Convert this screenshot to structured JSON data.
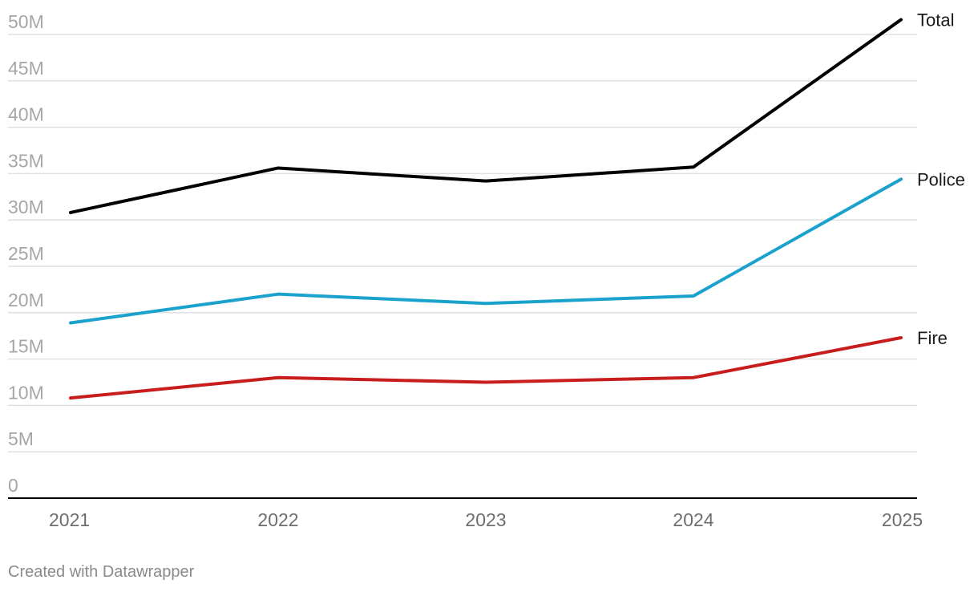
{
  "chart_data": {
    "type": "line",
    "title": "",
    "xlabel": "",
    "ylabel": "",
    "x": [
      "2021",
      "2022",
      "2023",
      "2024",
      "2025"
    ],
    "ylim": [
      0,
      50000000
    ],
    "y_ticks": [
      0,
      5000000,
      10000000,
      15000000,
      20000000,
      25000000,
      30000000,
      35000000,
      40000000,
      45000000,
      50000000
    ],
    "y_tick_labels": [
      "0",
      "5M",
      "10M",
      "15M",
      "20M",
      "25M",
      "30M",
      "35M",
      "40M",
      "45M",
      "50M"
    ],
    "grid": true,
    "legend": "inline labels at line ends",
    "series": [
      {
        "name": "Total",
        "color": "#000000",
        "values": [
          30800000,
          35600000,
          34200000,
          35700000,
          51600000
        ]
      },
      {
        "name": "Police",
        "color": "#1ba2cc",
        "values": [
          18900000,
          22000000,
          21000000,
          21800000,
          34400000
        ]
      },
      {
        "name": "Fire",
        "color": "#c71e1d",
        "values": [
          10800000,
          13000000,
          12500000,
          13000000,
          17300000
        ]
      }
    ]
  },
  "footer": {
    "credit": "Created with Datawrapper"
  }
}
